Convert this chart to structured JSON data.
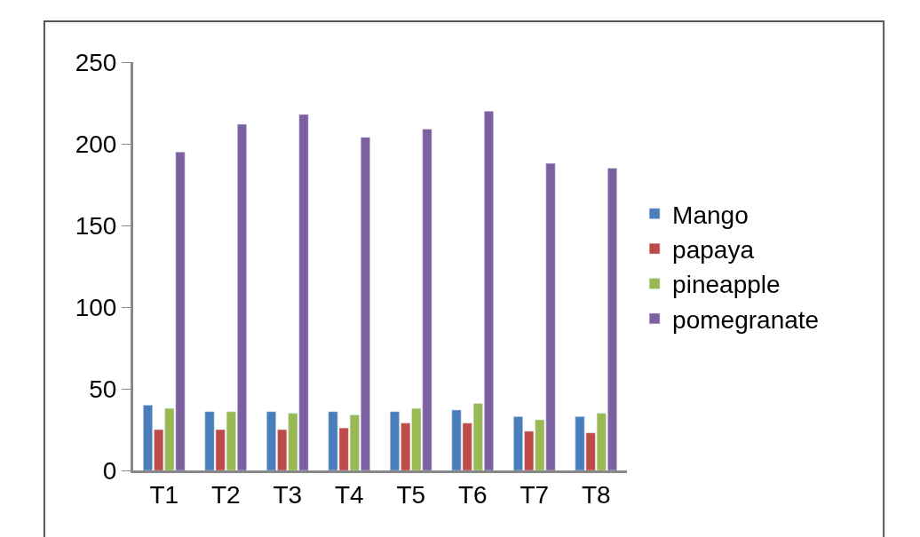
{
  "chart_data": {
    "type": "bar",
    "categories": [
      "T1",
      "T2",
      "T3",
      "T4",
      "T5",
      "T6",
      "T7",
      "T8"
    ],
    "series": [
      {
        "name": "Mango",
        "color": "#4a7ebb",
        "values": [
          40,
          36,
          36,
          36,
          36,
          37,
          33,
          33
        ]
      },
      {
        "name": "papaya",
        "color": "#be4b48",
        "values": [
          25,
          25,
          25,
          26,
          29,
          29,
          24,
          23
        ]
      },
      {
        "name": "pineapple",
        "color": "#98b954",
        "values": [
          38,
          36,
          35,
          34,
          38,
          41,
          31,
          35
        ]
      },
      {
        "name": "pomegranate",
        "color": "#7d60a0",
        "values": [
          195,
          212,
          218,
          204,
          209,
          220,
          188,
          185
        ]
      }
    ],
    "ylim": [
      0,
      250
    ],
    "yticks": [
      0,
      50,
      100,
      150,
      200,
      250
    ],
    "grid": false,
    "legend": "right"
  }
}
